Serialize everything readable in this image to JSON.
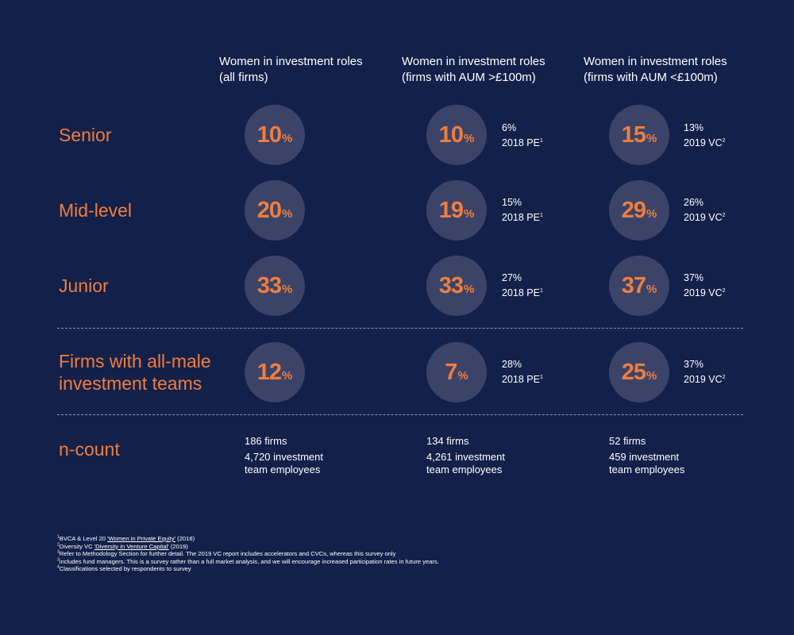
{
  "columns": [
    {
      "line1": "Women in investment roles",
      "line2": "(all firms)"
    },
    {
      "line1": "Women in investment roles",
      "line2": "(firms with AUM >£100m)"
    },
    {
      "line1": "Women in investment roles",
      "line2": "(firms with AUM <£100m)"
    }
  ],
  "rows": [
    {
      "label_lines": [
        "Senior"
      ],
      "all_firms": "10",
      "large_firms": {
        "value": "10",
        "compare_value": "6%",
        "compare_label": "2018 PE",
        "compare_ref": "1"
      },
      "small_firms": {
        "value": "15",
        "compare_value": "13%",
        "compare_label": "2019 VC",
        "compare_ref": "2"
      }
    },
    {
      "label_lines": [
        "Mid-level"
      ],
      "all_firms": "20",
      "large_firms": {
        "value": "19",
        "compare_value": "15%",
        "compare_label": "2018 PE",
        "compare_ref": "1"
      },
      "small_firms": {
        "value": "29",
        "compare_value": "26%",
        "compare_label": "2019 VC",
        "compare_ref": "2"
      }
    },
    {
      "label_lines": [
        "Junior"
      ],
      "all_firms": "33",
      "large_firms": {
        "value": "33",
        "compare_value": "27%",
        "compare_label": "2018 PE",
        "compare_ref": "1"
      },
      "small_firms": {
        "value": "37",
        "compare_value": "37%",
        "compare_label": "2019 VC",
        "compare_ref": "2"
      }
    },
    {
      "label_lines": [
        "Firms with all-male",
        "investment teams"
      ],
      "all_firms": "12",
      "large_firms": {
        "value": "7",
        "compare_value": "28%",
        "compare_label": "2018 PE",
        "compare_ref": "1"
      },
      "small_firms": {
        "value": "25",
        "compare_value": "37%",
        "compare_label": "2019 VC",
        "compare_ref": "2"
      }
    }
  ],
  "percent_sign": "%",
  "ncount": {
    "label": "n-count",
    "values": [
      {
        "firms": "186 firms",
        "employees": "4,720 investment team employees"
      },
      {
        "firms": "134 firms",
        "employees": "4,261 investment team employees"
      },
      {
        "firms": "52 firms",
        "employees": "459 investment team employees"
      }
    ]
  },
  "footnotes": [
    {
      "mark": "1",
      "pre": "BVCA & Level 20 ",
      "link": "'Women in Private Equity'",
      "post": " (2018)"
    },
    {
      "mark": "2",
      "pre": "Diversity VC ",
      "link": "'Diversity in Venture Capital'",
      "post": " (2019)"
    },
    {
      "mark": "3",
      "pre": "Refer to Methodology Section for further detail. The 2019 VC report includes accelerators and CVCs, whereas this survey only",
      "link": "",
      "post": ""
    },
    {
      "mark": "3",
      "pre": "includes fund managers. This is a survey rather than a full market analysis, and we will encourage increased participation rates in future years.",
      "link": "",
      "post": ""
    },
    {
      "mark": "4",
      "pre": "Classifications selected by respondents to survey",
      "link": "",
      "post": ""
    }
  ],
  "colors": {
    "background": "#13204a",
    "accent": "#f07e3e",
    "circle": "#3b4468",
    "text": "#ffffff"
  }
}
